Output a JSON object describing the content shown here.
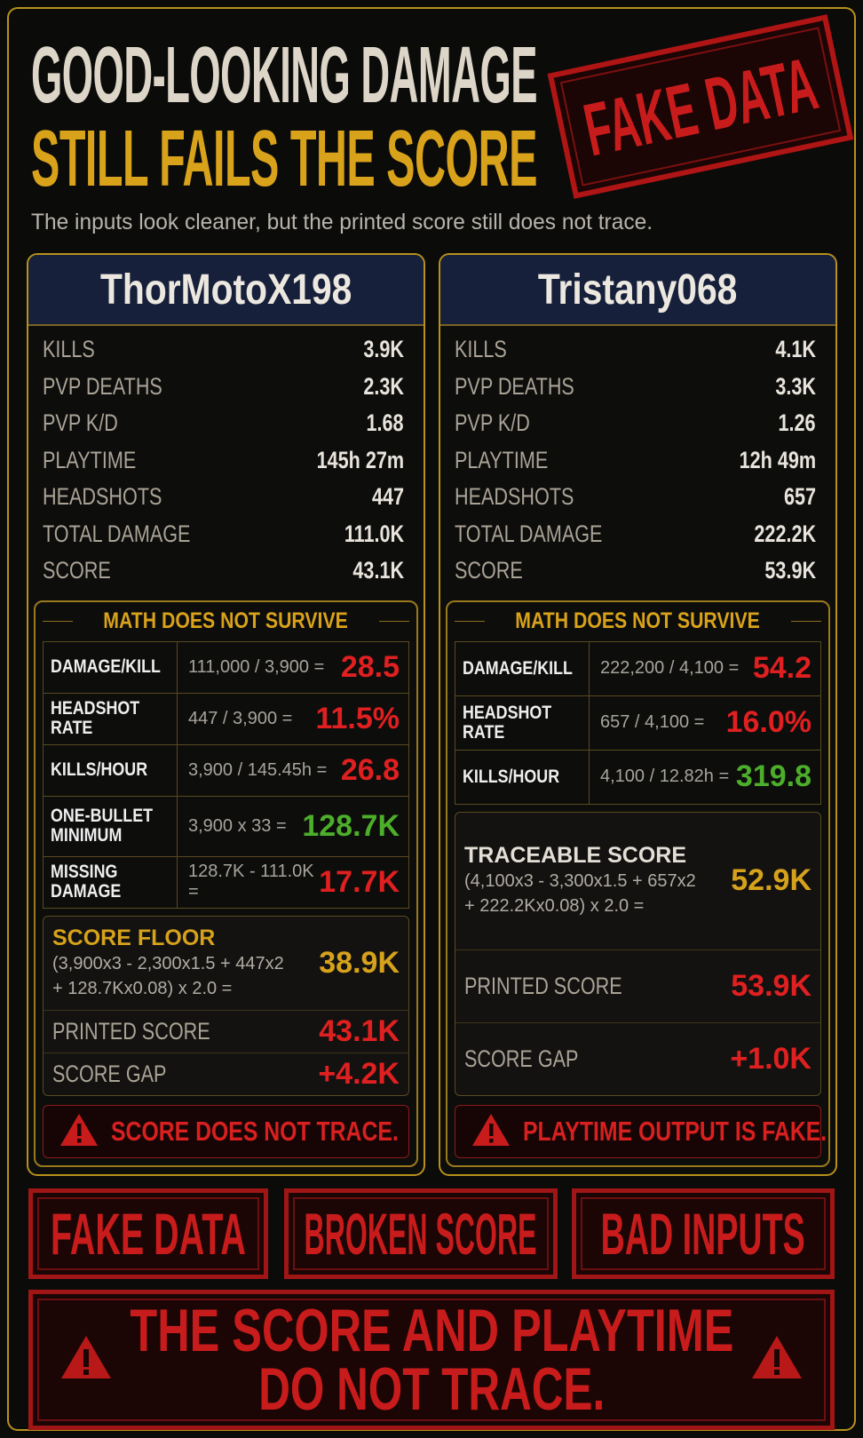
{
  "header": {
    "title_line1": "GOOD-LOOKING DAMAGE",
    "title_line2": "STILL FAILS THE SCORE",
    "stamp": "FAKE DATA",
    "subtitle": "The inputs look cleaner, but the printed score still does not trace."
  },
  "players": [
    {
      "name": "ThorMotoX198",
      "stats": [
        {
          "label": "KILLS",
          "value": "3.9K"
        },
        {
          "label": "PVP DEATHS",
          "value": "2.3K"
        },
        {
          "label": "PVP K/D",
          "value": "1.68"
        },
        {
          "label": "PLAYTIME",
          "value": "145h 27m"
        },
        {
          "label": "HEADSHOTS",
          "value": "447"
        },
        {
          "label": "TOTAL DAMAGE",
          "value": "111.0K"
        },
        {
          "label": "SCORE",
          "value": "43.1K"
        }
      ],
      "math_title": "MATH DOES NOT SURVIVE",
      "math_rows": [
        {
          "label": "DAMAGE/KILL",
          "formula": "111,000 / 3,900 =",
          "result": "28.5",
          "tone": "red"
        },
        {
          "label": "HEADSHOT RATE",
          "formula": "447 / 3,900 =",
          "result": "11.5%",
          "tone": "red"
        },
        {
          "label": "KILLS/HOUR",
          "formula": "3,900 / 145.45h =",
          "result": "26.8",
          "tone": "red"
        },
        {
          "label": "ONE-BULLET MINIMUM",
          "formula": "3,900 x 33 =",
          "result": "128.7K",
          "tone": "green"
        },
        {
          "label": "MISSING DAMAGE",
          "formula": "128.7K - 111.0K =",
          "result": "17.7K",
          "tone": "red"
        }
      ],
      "score": {
        "label": "SCORE FLOOR",
        "label_tone": "gold",
        "formula": [
          "(3,900x3 - 2,300x1.5 + 447x2",
          "+ 128.7Kx0.08) x 2.0 ="
        ],
        "result": "38.9K",
        "printed_label": "PRINTED SCORE",
        "printed_value": "43.1K",
        "gap_label": "SCORE GAP",
        "gap_value": "+4.2K"
      },
      "warning": "SCORE DOES NOT TRACE."
    },
    {
      "name": "Tristany068",
      "stats": [
        {
          "label": "KILLS",
          "value": "4.1K"
        },
        {
          "label": "PVP DEATHS",
          "value": "3.3K"
        },
        {
          "label": "PVP K/D",
          "value": "1.26"
        },
        {
          "label": "PLAYTIME",
          "value": "12h 49m"
        },
        {
          "label": "HEADSHOTS",
          "value": "657"
        },
        {
          "label": "TOTAL DAMAGE",
          "value": "222.2K"
        },
        {
          "label": "SCORE",
          "value": "53.9K"
        }
      ],
      "math_title": "MATH DOES NOT SURVIVE",
      "math_rows": [
        {
          "label": "DAMAGE/KILL",
          "formula": "222,200 / 4,100 =",
          "result": "54.2",
          "tone": "red"
        },
        {
          "label": "HEADSHOT RATE",
          "formula": "657 / 4,100 =",
          "result": "16.0%",
          "tone": "red"
        },
        {
          "label": "KILLS/HOUR",
          "formula": "4,100 / 12.82h =",
          "result": "319.8",
          "tone": "green"
        }
      ],
      "score": {
        "label": "TRACEABLE SCORE",
        "label_tone": "white",
        "formula": [
          "(4,100x3 - 3,300x1.5 + 657x2",
          "+ 222.2Kx0.08) x 2.0 ="
        ],
        "result": "52.9K",
        "printed_label": "PRINTED SCORE",
        "printed_value": "53.9K",
        "gap_label": "SCORE GAP",
        "gap_value": "+1.0K"
      },
      "warning": "PLAYTIME OUTPUT IS FAKE."
    }
  ],
  "stamps": [
    "FAKE DATA",
    "BROKEN SCORE",
    "BAD INPUTS"
  ],
  "footer": {
    "line1": "THE SCORE AND PLAYTIME",
    "line2": "DO NOT TRACE."
  }
}
